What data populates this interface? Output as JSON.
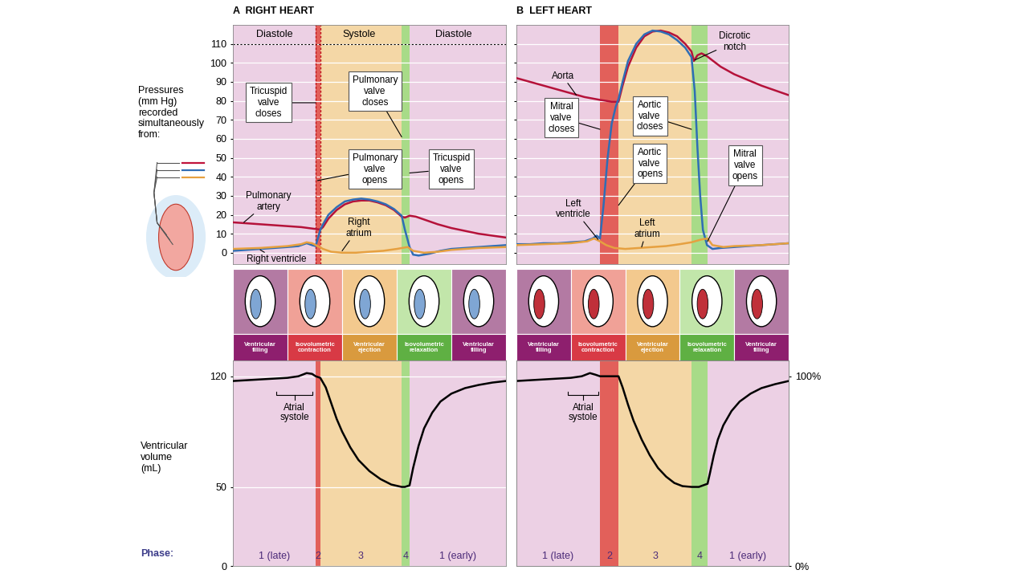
{
  "chart_data": [
    {
      "type": "line",
      "title": "A  RIGHT HEART",
      "ylabel": "Pressures\n(mm Hg)\nrecorded\nsimultaneously\nfrom:",
      "xlim": [
        0,
        100
      ],
      "ylim": [
        -6,
        120
      ],
      "yticks": [
        0,
        10,
        20,
        30,
        40,
        50,
        60,
        70,
        80,
        90,
        100,
        110
      ],
      "grid": true,
      "tick_labels": "y",
      "phase_bounds": [
        30.3,
        32,
        61.8,
        64.7
      ],
      "header": [
        {
          "label": "Diastole",
          "start": 0,
          "end": 30.3
        },
        {
          "label": "Systole",
          "start": 30.3,
          "end": 61.8
        },
        {
          "label": "Diastole",
          "start": 61.8,
          "end": 100
        }
      ],
      "series": [
        {
          "color": "#b5123a",
          "x": [
            0,
            5,
            10,
            15,
            20,
            25,
            30.3,
            32,
            33,
            35,
            38,
            41,
            44,
            47,
            50,
            53,
            56,
            59,
            61.8,
            63,
            64.7,
            67,
            70,
            75,
            80,
            85,
            90,
            95,
            100
          ],
          "values": [
            16,
            15.5,
            15,
            14.5,
            14,
            13.5,
            12.5,
            12.2,
            13.5,
            18,
            22.5,
            25.5,
            27,
            27.5,
            27.5,
            26.5,
            25,
            22.5,
            19,
            18.5,
            19.5,
            19,
            17.5,
            15,
            13,
            11.5,
            10,
            9,
            8
          ]
        },
        {
          "color": "#2f6db5",
          "x": [
            0,
            5,
            10,
            15,
            20,
            24,
            27,
            29,
            30.3,
            32,
            33,
            35,
            38,
            41,
            44,
            47,
            50,
            53,
            56,
            59,
            61.8,
            63,
            64.7,
            66,
            68,
            72,
            76,
            80,
            85,
            90,
            95,
            100
          ],
          "values": [
            1,
            1.5,
            2,
            2.5,
            3,
            3.5,
            5,
            4,
            3.5,
            12,
            15,
            20,
            24,
            27,
            28,
            28.5,
            28,
            27,
            25.5,
            23,
            19.5,
            12,
            3,
            -1,
            -1.5,
            -0.5,
            1,
            2,
            2.5,
            3,
            3.5,
            4
          ]
        },
        {
          "color": "#e6a040",
          "x": [
            0,
            10,
            20,
            25,
            27,
            29,
            31,
            33,
            36,
            40,
            45,
            50,
            55,
            60,
            62,
            64,
            66,
            70,
            75,
            80,
            90,
            100
          ],
          "values": [
            2,
            2.5,
            3.5,
            4.5,
            5.5,
            5,
            3.5,
            2,
            0.5,
            0,
            0,
            0.5,
            1,
            2,
            2.5,
            3,
            1,
            0,
            0.5,
            1.5,
            2.5,
            3
          ]
        }
      ],
      "annotations": [
        {
          "text": "Tricuspid\nvalve\ncloses",
          "x": 30.3,
          "y": 79
        },
        {
          "text": "Pulmonary\nvalve\ncloses",
          "x": 61.8,
          "y": 61
        },
        {
          "text": "Pulmonary\nvalve\nopens",
          "x": 31,
          "y": 38
        },
        {
          "text": "Tricuspid\nvalve\nopens",
          "x": 64.7,
          "y": 42
        },
        {
          "text": "Pulmonary\nartery",
          "x": 4,
          "y": 16
        },
        {
          "text": "Right\natrium",
          "x": 40,
          "y": 1
        },
        {
          "text": "Right ventricle",
          "x": 10,
          "y": 1.5
        }
      ]
    },
    {
      "type": "line",
      "title": "B  LEFT HEART",
      "xlim": [
        0,
        100
      ],
      "ylim": [
        -6,
        120
      ],
      "yticks": [
        0,
        10,
        20,
        30,
        40,
        50,
        60,
        70,
        80,
        90,
        100,
        110
      ],
      "grid": true,
      "tick_labels": false,
      "phase_bounds": [
        30.7,
        37.5,
        64.3,
        70.2
      ],
      "series": [
        {
          "color": "#b5123a",
          "x": [
            0,
            5,
            10,
            15,
            20,
            25,
            30.7,
            33,
            35,
            37.5,
            39,
            41,
            44,
            47,
            50,
            53,
            56,
            59,
            62,
            64.3,
            65.2,
            66.5,
            68,
            70,
            75,
            80,
            85,
            90,
            95,
            100
          ],
          "values": [
            92,
            90,
            88,
            86,
            84,
            82,
            80.5,
            80,
            79.5,
            79.5,
            88,
            98,
            108,
            114,
            116.5,
            117,
            116,
            114,
            110,
            106,
            101,
            104,
            105,
            103.5,
            98,
            94,
            91,
            88,
            85.5,
            83
          ]
        },
        {
          "color": "#2f6db5",
          "x": [
            0,
            5,
            10,
            15,
            20,
            25,
            28,
            29.5,
            30.7,
            32,
            33.5,
            35,
            36.5,
            37.5,
            39,
            41,
            44,
            47,
            50,
            53,
            56,
            59,
            62,
            64.3,
            65.5,
            66.5,
            67.5,
            68.5,
            70,
            72,
            75,
            80,
            85,
            90,
            95,
            100
          ],
          "values": [
            4.5,
            4.5,
            5,
            5,
            5.5,
            6,
            7.5,
            9,
            7.5,
            25,
            50,
            68,
            77,
            81,
            90,
            101,
            110,
            115,
            117,
            116.5,
            115,
            112,
            108,
            103,
            85,
            55,
            30,
            12,
            4,
            2,
            2.5,
            3,
            3.5,
            4,
            4.5,
            5
          ]
        },
        {
          "color": "#e6a040",
          "x": [
            0,
            10,
            20,
            26,
            28.5,
            30.7,
            33,
            36,
            40,
            45,
            50,
            55,
            60,
            64.3,
            68,
            70.2,
            72,
            76,
            80,
            90,
            100
          ],
          "values": [
            4,
            4.5,
            5,
            6,
            7.5,
            6,
            4,
            2.5,
            2,
            2.5,
            3,
            3.5,
            4.5,
            5.5,
            7,
            7.5,
            4,
            3,
            3.5,
            4,
            5
          ]
        }
      ],
      "annotations": [
        {
          "text": "Aorta",
          "x": 22,
          "y": 83
        },
        {
          "text": "Dicrotic\nnotch",
          "x": 65.5,
          "y": 101.5
        },
        {
          "text": "Mitral\nvalve\ncloses",
          "x": 30.7,
          "y": 65
        },
        {
          "text": "Aortic\nvalve\ncloses",
          "x": 64.3,
          "y": 65
        },
        {
          "text": "Aortic\nvalve\nopens",
          "x": 37.5,
          "y": 25
        },
        {
          "text": "Mitral\nvalve\nopens",
          "x": 70.2,
          "y": 6
        },
        {
          "text": "Left\nventricle",
          "x": 30,
          "y": 7
        },
        {
          "text": "Left\natrium",
          "x": 46,
          "y": 3
        }
      ]
    },
    {
      "type": "line",
      "ylabel": "Ventricular\nvolume\n(mL)",
      "xlim": [
        0,
        100
      ],
      "ylim": [
        0,
        130
      ],
      "yticks": [
        0,
        50,
        120
      ],
      "grid": true,
      "tick_labels": "y",
      "phase_bounds": [
        30.3,
        32,
        61.8,
        64.7
      ],
      "phase_labels": [
        "1 (late)",
        "2",
        "3",
        "4",
        "1 (early)"
      ],
      "series": [
        {
          "color": "#000000",
          "x": [
            0,
            5,
            10,
            15,
            20,
            24,
            27,
            29,
            30.3,
            32,
            34,
            36,
            38,
            40,
            43,
            46,
            50,
            54,
            58,
            61.8,
            63,
            64.7,
            66,
            68,
            70,
            73,
            76,
            80,
            85,
            90,
            95,
            100
          ],
          "values": [
            117,
            117.5,
            118,
            118.5,
            119,
            120,
            122,
            121.5,
            120,
            119,
            113,
            103,
            93,
            85,
            75,
            67,
            60,
            55,
            51.5,
            50,
            50,
            51,
            62,
            76,
            87,
            97,
            104,
            109,
            112.5,
            114.5,
            116,
            117
          ]
        }
      ],
      "annotations": [
        {
          "text": "Atrial\nsystole",
          "start": 16,
          "end": 29
        }
      ]
    },
    {
      "type": "line",
      "xlim": [
        0,
        100
      ],
      "ylim": [
        0,
        130
      ],
      "y2lim": [
        0,
        108.3
      ],
      "y2ticks": [
        {
          "value": 0,
          "label": "0%"
        },
        {
          "value": 100,
          "label": "100%"
        }
      ],
      "grid": false,
      "phase_bounds": [
        30.7,
        37.5,
        64.3,
        70.2
      ],
      "phase_labels": [
        "1 (late)",
        "2",
        "3",
        "4",
        "1 (early)"
      ],
      "series": [
        {
          "color": "#000000",
          "x": [
            0,
            5,
            10,
            15,
            20,
            24,
            27,
            29,
            30.7,
            34,
            37.5,
            39,
            41,
            43,
            46,
            49,
            52,
            55,
            58,
            61,
            64.3,
            67,
            70.2,
            71,
            72.5,
            74,
            76,
            79,
            82,
            86,
            90,
            95,
            100
          ],
          "values": [
            117,
            117.5,
            118,
            118.5,
            119,
            120,
            122,
            121,
            120,
            120,
            120,
            113,
            102,
            92,
            80,
            70,
            62,
            56.5,
            52.5,
            50.5,
            50,
            50,
            52,
            58,
            70,
            80,
            89,
            98,
            104,
            109,
            112.5,
            115,
            117
          ]
        }
      ],
      "annotations": [
        {
          "text": "Atrial\nsystole",
          "start": 19,
          "end": 30
        }
      ]
    }
  ],
  "phase_strip": {
    "labels": [
      "Ventricular\nfilling",
      "Isovolumetric\ncontraction",
      "Ventricular\nejection",
      "Isovolumetric\nrelaxation",
      "Ventricular\nfilling"
    ]
  },
  "phase_row_label": "Phase:"
}
